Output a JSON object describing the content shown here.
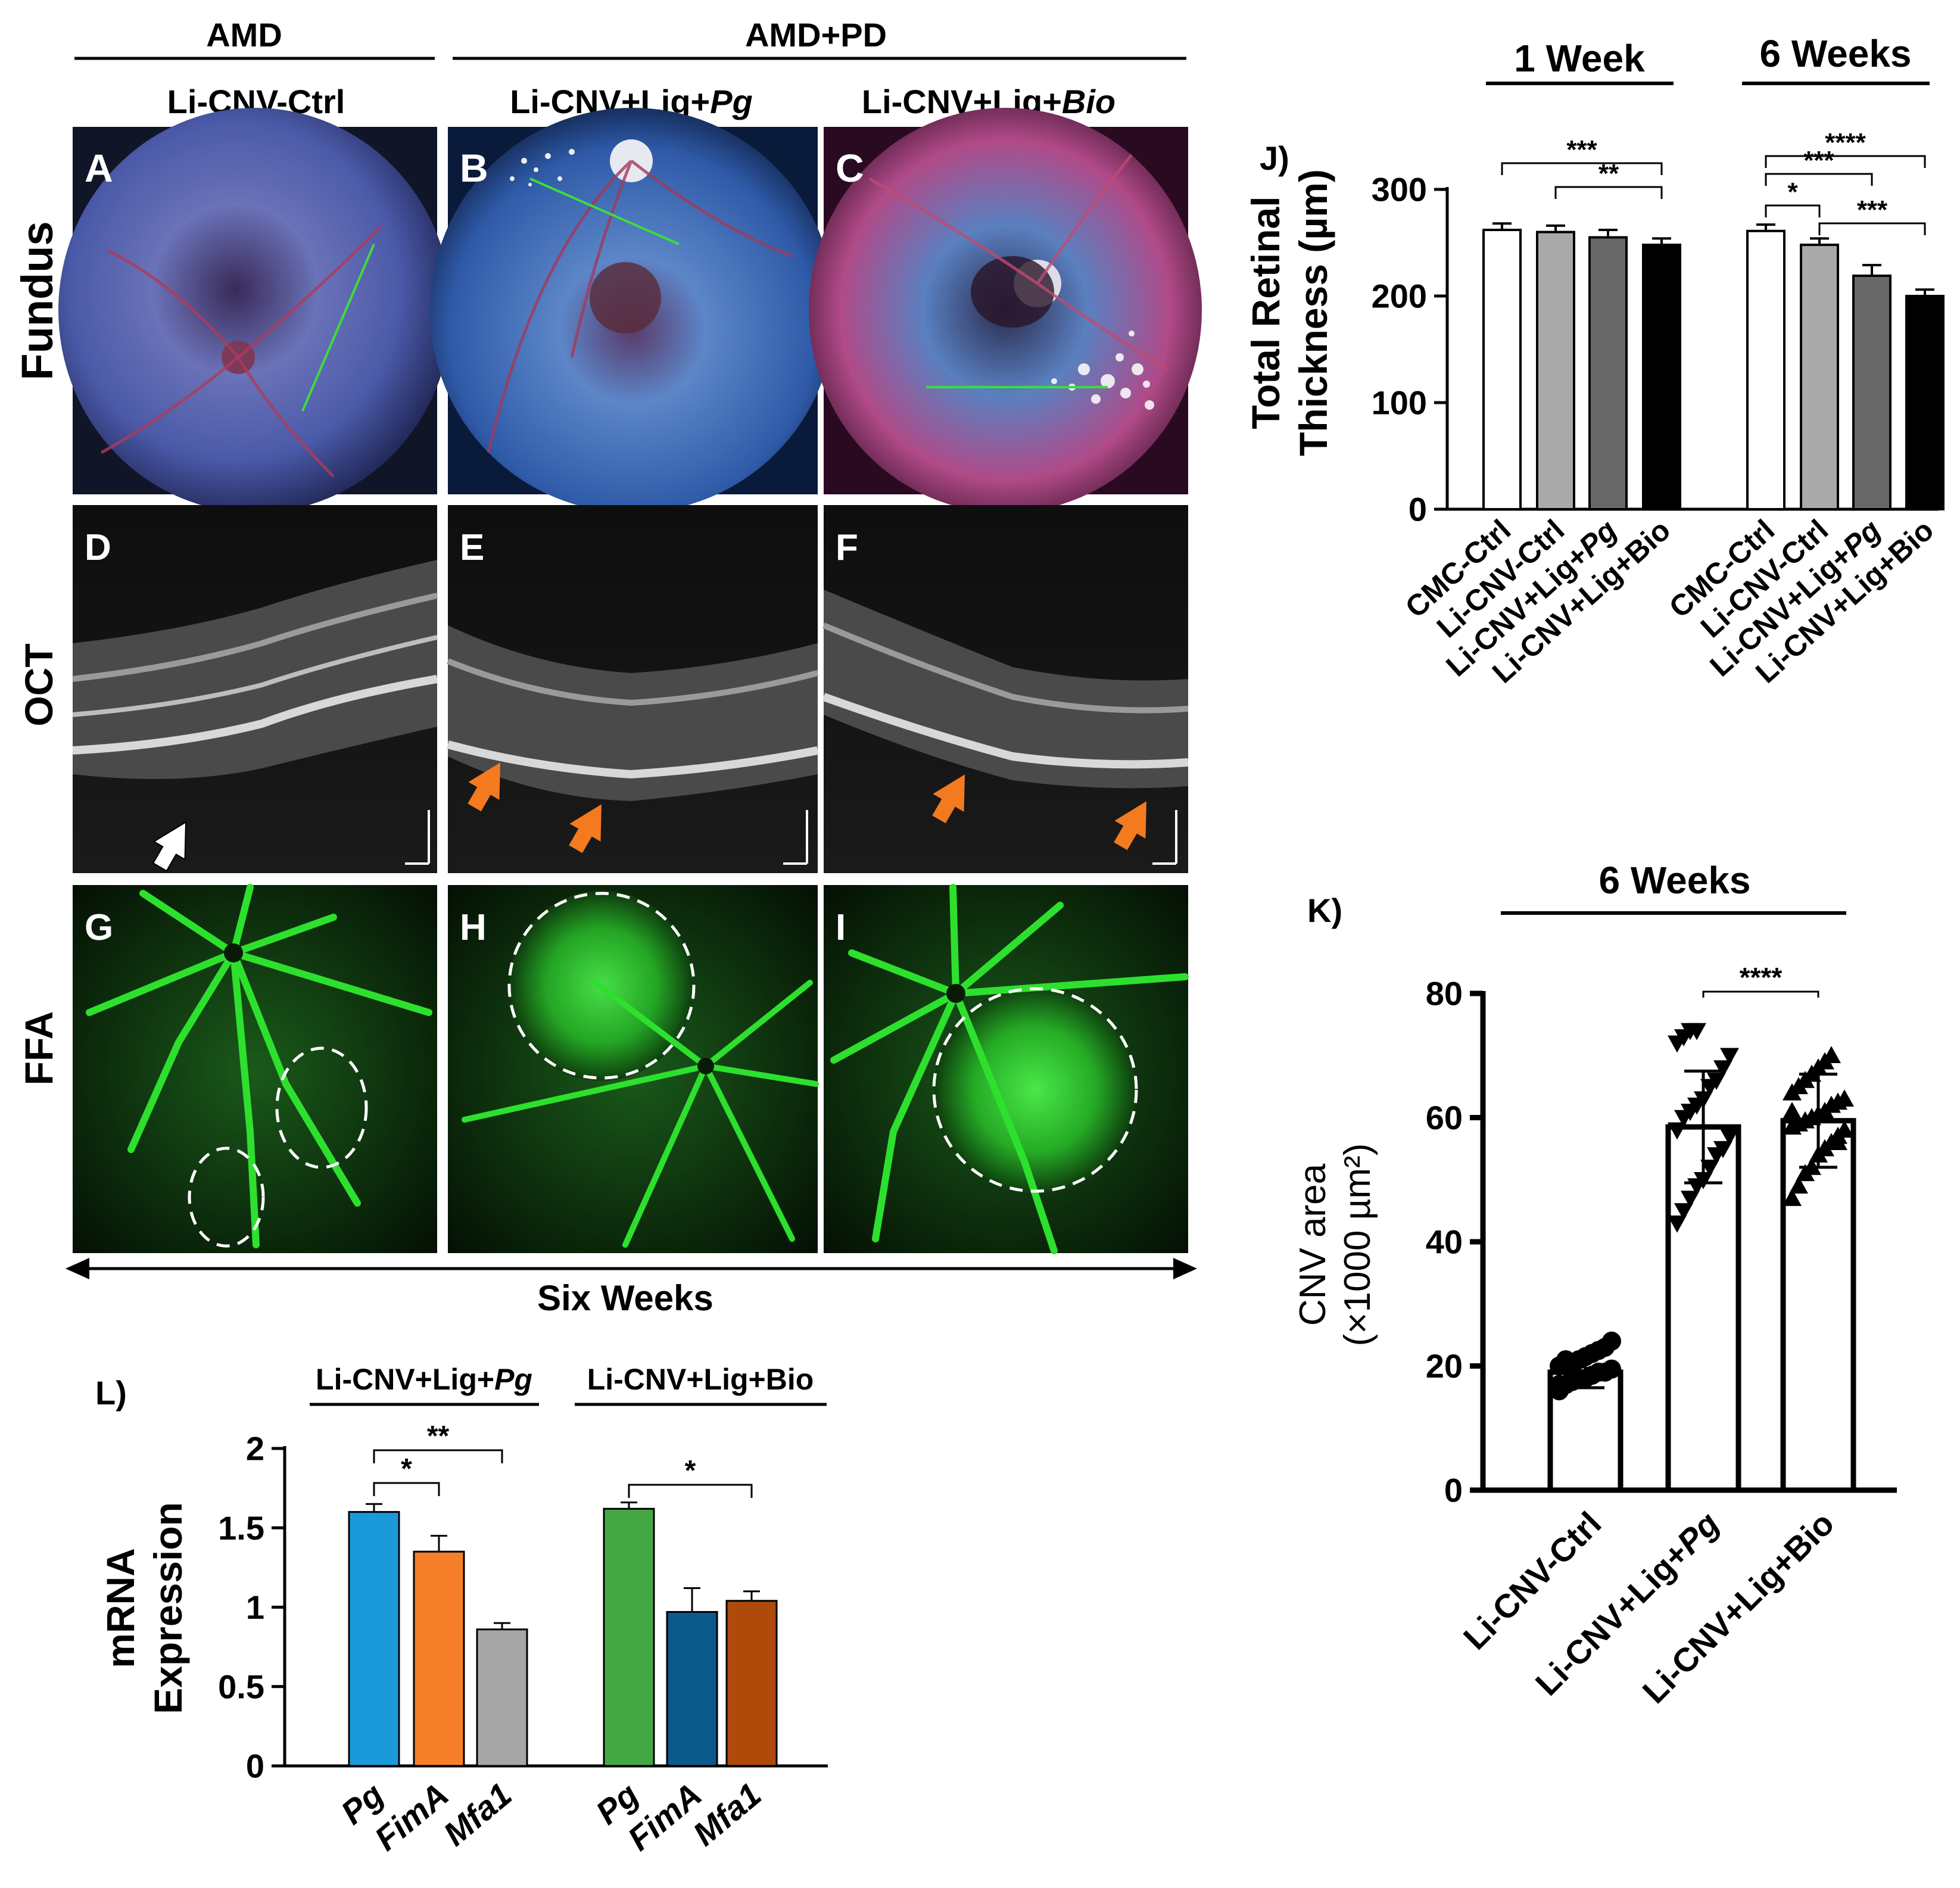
{
  "header": {
    "amd": "AMD",
    "amd_pd": "AMD+PD",
    "col_ctrl": "Li-CNV-Ctrl",
    "col_pg_prefix": "Li-CNV+Lig+",
    "col_pg_italic": "Pg",
    "col_bio_prefix": "Li-CNV+Lig+",
    "col_bio_italic": "Bio"
  },
  "rows": {
    "fundus": "Fundus",
    "oct": "OCT",
    "ffa": "FFA"
  },
  "panels": {
    "letters": [
      "A",
      "B",
      "C",
      "D",
      "E",
      "F",
      "G",
      "H",
      "I"
    ],
    "colors": {
      "fundus_bg": "#1b2b66",
      "fundus_pink": "#b04a88",
      "oct_bg": "#151515",
      "ffa_bg": "#0a1a08",
      "ffa_green": "#22c922",
      "arrow_white": "#ffffff",
      "arrow_orange": "#f47a20",
      "scan_line": "#3ddc3d"
    }
  },
  "timeline": {
    "label": "Six Weeks"
  },
  "chart_data": [
    {
      "id": "J",
      "panel_label": "J)",
      "type": "bar",
      "group_titles": [
        "1 Week",
        "6 Weeks"
      ],
      "ylabel_line1": "Total Retinal",
      "ylabel_line2": "Thickness (µm)",
      "ylim": [
        0,
        300
      ],
      "yticks": [
        "0",
        "100",
        "200",
        "300"
      ],
      "categories": [
        "CMC-Ctrl",
        "Li-CNV-Ctrl",
        "Li-CNV+Lig+Pg",
        "Li-CNV+Lig+Bio",
        "CMC-Ctrl",
        "Li-CNV-Ctrl",
        "Li-CNV+Lig+Pg",
        "Li-CNV+Lig+Bio"
      ],
      "values": [
        262,
        260,
        255,
        248,
        261,
        248,
        219,
        200
      ],
      "errors": [
        6,
        6,
        7,
        6,
        6,
        6,
        10,
        6
      ],
      "bar_colors": [
        "#ffffff",
        "#a9a9a9",
        "#686868",
        "#000000",
        "#ffffff",
        "#a9a9a9",
        "#686868",
        "#000000"
      ],
      "significance": [
        {
          "label": "***",
          "from": 0,
          "to": 3
        },
        {
          "label": "**",
          "from": 1,
          "to": 3
        },
        {
          "label": "****",
          "from": 4,
          "to": 7
        },
        {
          "label": "***",
          "from": 4,
          "to": 6
        },
        {
          "label": "*",
          "from": 4,
          "to": 5
        },
        {
          "label": "***",
          "from": 5,
          "to": 7
        }
      ]
    },
    {
      "id": "K",
      "panel_label": "K)",
      "type": "bar",
      "title": "6 Weeks",
      "ylabel_line1": "CNV area",
      "ylabel_line2": "(×1000 µm²)",
      "ylim": [
        0,
        80
      ],
      "yticks": [
        "0",
        "20",
        "40",
        "60",
        "80"
      ],
      "categories": [
        "Li-CNV-Ctrl",
        "Li-CNV+Lig+Pg",
        "Li-CNV+Lig+Bio"
      ],
      "values": [
        19,
        58.5,
        59.5
      ],
      "errors": [
        2.5,
        9,
        7.5
      ],
      "points": [
        [
          16,
          17,
          17.5,
          18,
          18,
          18.5,
          19,
          19,
          19.5,
          20,
          20,
          20.5,
          21,
          21.5,
          22,
          22.5,
          23,
          24,
          17,
          21
        ],
        [
          43,
          45,
          47,
          49,
          50,
          52,
          54,
          55,
          57,
          58,
          60,
          61,
          62,
          63,
          65,
          66,
          68,
          70,
          72,
          73,
          74,
          74
        ],
        [
          47,
          49,
          51,
          52,
          54,
          55,
          56,
          57,
          58,
          58.5,
          59,
          59.5,
          60,
          60.5,
          61,
          62,
          62.5,
          63,
          64,
          65,
          66,
          67,
          68,
          69,
          70,
          56,
          58,
          61
        ]
      ],
      "point_shapes": [
        "circle",
        "triangle-down",
        "triangle-up"
      ],
      "significance": [
        {
          "label": "****",
          "from": 1,
          "to": 2
        }
      ]
    },
    {
      "id": "L",
      "panel_label": "L)",
      "type": "bar",
      "group_titles": [
        "Li-CNV+Lig+Pg",
        "Li-CNV+Lig+Bio"
      ],
      "ylabel_line1": "mRNA",
      "ylabel_line2": "Expression",
      "ylim": [
        0,
        2
      ],
      "yticks": [
        "0",
        "0.5",
        "1",
        "1.5",
        "2"
      ],
      "categories": [
        "Pg",
        "FimA",
        "Mfa1",
        "Pg",
        "FimA",
        "Mfa1"
      ],
      "values": [
        1.6,
        1.35,
        0.86,
        1.62,
        0.97,
        1.04
      ],
      "errors": [
        0.05,
        0.1,
        0.04,
        0.04,
        0.15,
        0.06
      ],
      "bar_colors": [
        "#1b9ad9",
        "#f57f29",
        "#a6a6a6",
        "#43a843",
        "#0c5a8c",
        "#b04a0a"
      ],
      "significance": [
        {
          "label": "**",
          "from": 0,
          "to": 2
        },
        {
          "label": "*",
          "from": 0,
          "to": 1
        },
        {
          "label": "*",
          "from": 3,
          "to": 5
        }
      ]
    }
  ]
}
